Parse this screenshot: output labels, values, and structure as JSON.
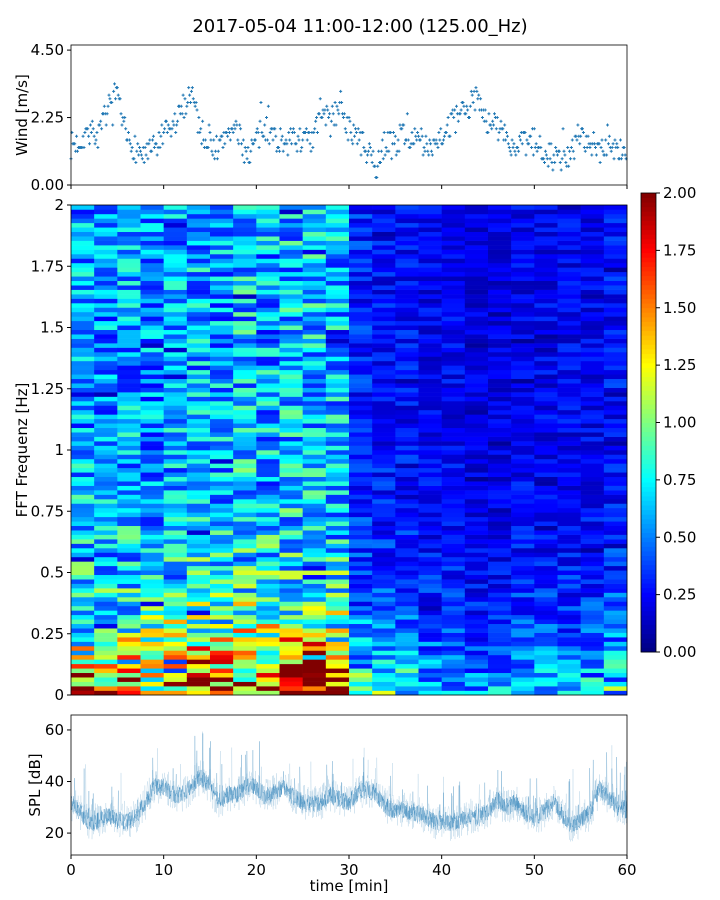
{
  "chart_data": [
    {
      "type": "scatter",
      "title": "2017-05-04 11:00-12:00 (125.00_Hz)",
      "ylabel": "Wind [m/s]",
      "xlim": [
        0,
        60
      ],
      "ylim": [
        0,
        4.67
      ],
      "yticks": [
        "0.00",
        "2.25",
        "4.50"
      ],
      "ytick_values": [
        0,
        2.25,
        4.5
      ],
      "xtick_values": [
        0,
        10,
        20,
        30,
        40,
        50,
        60
      ],
      "color": "#1f77b4",
      "marker": "+",
      "wind_trend_per_minute": [
        1.3,
        1.5,
        1.8,
        1.6,
        2.6,
        2.8,
        1.5,
        1.2,
        1.0,
        1.2,
        1.6,
        1.9,
        2.5,
        3.2,
        1.8,
        1.4,
        1.2,
        1.9,
        1.7,
        1.0,
        1.5,
        1.9,
        1.6,
        1.4,
        1.5,
        1.6,
        1.3,
        2.6,
        2.0,
        2.8,
        1.8,
        1.6,
        1.0,
        0.6,
        1.5,
        1.4,
        1.8,
        1.5,
        1.2,
        1.4,
        1.7,
        2.0,
        2.3,
        2.6,
        3.0,
        2.0,
        2.0,
        1.6,
        1.1,
        1.3,
        1.4,
        1.2,
        1.0,
        0.8,
        1.0,
        1.8,
        1.5,
        1.2,
        1.4,
        1.2,
        1.1
      ]
    },
    {
      "type": "heatmap",
      "ylabel": "FFT Frequenz [Hz]",
      "xlim": [
        0,
        60
      ],
      "ylim": [
        0,
        2
      ],
      "yticks": [
        "0",
        "0.25",
        "0.5",
        "0.75",
        "1",
        "1.25",
        "1.5",
        "1.75",
        "2"
      ],
      "ytick_values": [
        0,
        0.25,
        0.5,
        0.75,
        1,
        1.25,
        1.5,
        1.75,
        2
      ],
      "columns_minutes": 2.5,
      "frequency_bins": 110,
      "column_base_level": [
        0.75,
        0.7,
        0.75,
        0.7,
        0.75,
        0.8,
        0.75,
        0.85,
        0.8,
        0.85,
        0.85,
        0.8,
        0.4,
        0.35,
        0.35,
        0.3,
        0.3,
        0.25,
        0.25,
        0.3,
        0.3,
        0.3,
        0.3,
        0.35
      ],
      "colormap": "jet",
      "colorbar": {
        "range": [
          0,
          2
        ],
        "ticks": [
          "0.00",
          "0.25",
          "0.50",
          "0.75",
          "1.00",
          "1.25",
          "1.50",
          "1.75",
          "2.00"
        ],
        "tick_values": [
          0,
          0.25,
          0.5,
          0.75,
          1,
          1.25,
          1.5,
          1.75,
          2
        ]
      }
    },
    {
      "type": "line",
      "xlabel": "time [min]",
      "ylabel": "SPL [dB]",
      "xlim": [
        0,
        60
      ],
      "ylim": [
        11.5,
        65.8
      ],
      "xticks": [
        "0",
        "10",
        "20",
        "30",
        "40",
        "50",
        "60"
      ],
      "xtick_values": [
        0,
        10,
        20,
        30,
        40,
        50,
        60
      ],
      "yticks": [
        "20",
        "40",
        "60"
      ],
      "ytick_values": [
        20,
        40,
        60
      ],
      "color": "#1f77b4",
      "spl_trend_per_minute": [
        32,
        28,
        24,
        25,
        27,
        25,
        24,
        26,
        32,
        38,
        38,
        35,
        35,
        38,
        42,
        38,
        32,
        35,
        35,
        38,
        38,
        34,
        36,
        38,
        34,
        32,
        31,
        32,
        35,
        33,
        32,
        36,
        37,
        35,
        30,
        29,
        29,
        28,
        27,
        25,
        24,
        24,
        25,
        26,
        26,
        28,
        33,
        30,
        32,
        28,
        26,
        28,
        32,
        27,
        23,
        25,
        28,
        37,
        34,
        30,
        29
      ]
    }
  ]
}
